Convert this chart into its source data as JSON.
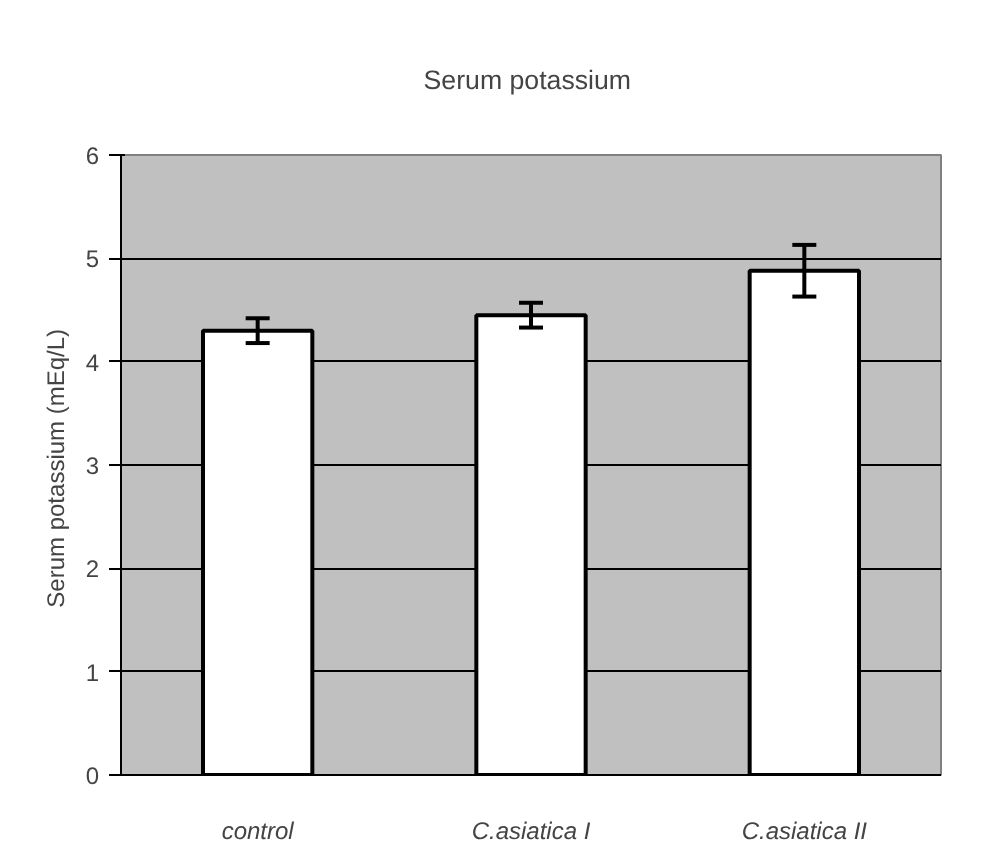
{
  "chart_data": {
    "type": "bar",
    "title": "Serum  potassium",
    "ylabel": "Serum potassium  (mEq/L)",
    "categories": [
      "control",
      "C.asiatica I",
      "C.asiatica II"
    ],
    "values": [
      4.3,
      4.45,
      4.88
    ],
    "errors": [
      0.12,
      0.12,
      0.25
    ],
    "color": "#ffffff",
    "ylim": [
      0,
      6
    ],
    "yticks": [
      0,
      1,
      2,
      3,
      4,
      5,
      6
    ],
    "grid": "y"
  }
}
